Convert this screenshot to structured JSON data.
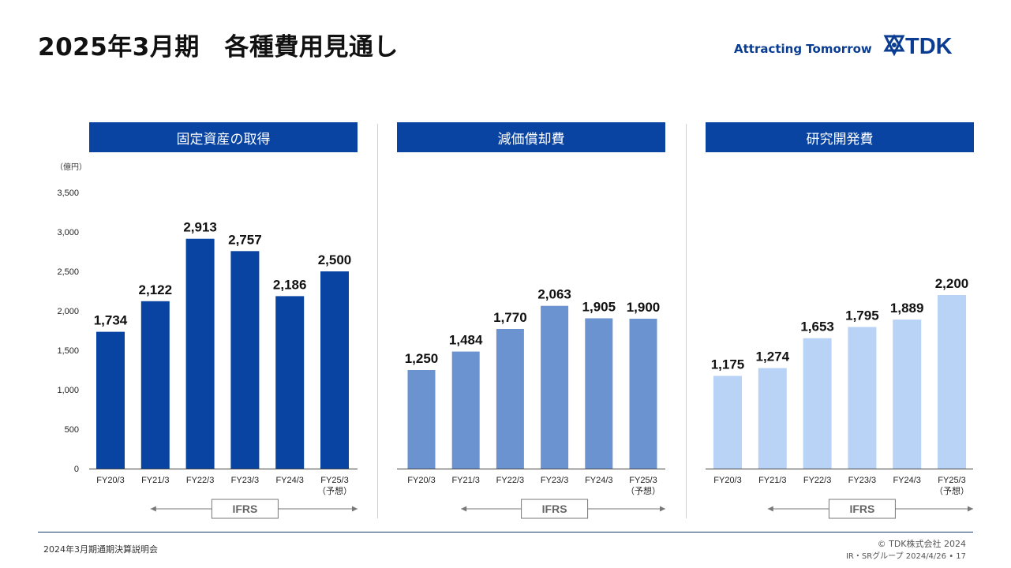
{
  "header": {
    "title": "2025年3月期　各種費用見通し",
    "tagline": "Attracting Tomorrow",
    "logo_text": "TDK"
  },
  "unit_label": "（億円）",
  "ifrs_label": "IFRS",
  "colors": {
    "panel_header": "#0a44a3",
    "series": [
      "#0a44a3",
      "#6a93cf",
      "#b9d3f7"
    ]
  },
  "chart_data": [
    {
      "type": "bar",
      "title": "固定資産の取得",
      "categories": [
        "FY20/3",
        "FY21/3",
        "FY22/3",
        "FY23/3",
        "FY24/3",
        "FY25/3"
      ],
      "category_notes": [
        "",
        "",
        "",
        "",
        "",
        "（予想）"
      ],
      "values": [
        1734,
        2122,
        2913,
        2757,
        2186,
        2500
      ],
      "value_labels": [
        "1,734",
        "2,122",
        "2,913",
        "2,757",
        "2,186",
        "2,500"
      ],
      "ylabel": "（億円）",
      "ylim": [
        0,
        3500
      ],
      "yticks": [
        0,
        500,
        1000,
        1500,
        2000,
        2500,
        3000,
        3500
      ],
      "ytick_labels": [
        "0",
        "500",
        "1,000",
        "1,500",
        "2,000",
        "2,500",
        "3,000",
        "3,500"
      ]
    },
    {
      "type": "bar",
      "title": "減価償却費",
      "categories": [
        "FY20/3",
        "FY21/3",
        "FY22/3",
        "FY23/3",
        "FY24/3",
        "FY25/3"
      ],
      "category_notes": [
        "",
        "",
        "",
        "",
        "",
        "（予想）"
      ],
      "values": [
        1250,
        1484,
        1770,
        2063,
        1905,
        1900
      ],
      "value_labels": [
        "1,250",
        "1,484",
        "1,770",
        "2,063",
        "1,905",
        "1,900"
      ],
      "ylim": [
        0,
        3500
      ]
    },
    {
      "type": "bar",
      "title": "研究開発費",
      "categories": [
        "FY20/3",
        "FY21/3",
        "FY22/3",
        "FY23/3",
        "FY24/3",
        "FY25/3"
      ],
      "category_notes": [
        "",
        "",
        "",
        "",
        "",
        "（予想）"
      ],
      "values": [
        1175,
        1274,
        1653,
        1795,
        1889,
        2200
      ],
      "value_labels": [
        "1,175",
        "1,274",
        "1,653",
        "1,795",
        "1,889",
        "2,200"
      ],
      "ylim": [
        0,
        3500
      ]
    }
  ],
  "footer": {
    "left": "2024年3月期通期決算説明会",
    "copyright": "© TDK株式会社 2024",
    "page_info": "IR・SRグループ  2024/4/26 • 17"
  }
}
